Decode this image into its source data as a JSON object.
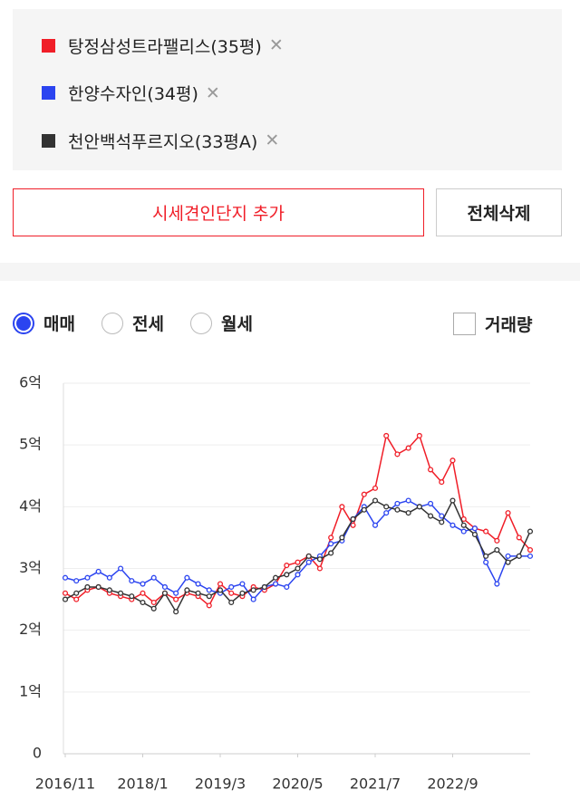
{
  "controls": {
    "add_button": "시세견인단지 추가",
    "delete_all_button": "전체삭제",
    "remove_icon": "✕",
    "radios": [
      "매매",
      "전세",
      "월세"
    ],
    "selected_radio": 0,
    "volume_checkbox": "거래량"
  },
  "chart_data": {
    "type": "line",
    "x": [
      "2016/11",
      "2017/1",
      "2017/3",
      "2017/5",
      "2017/7",
      "2017/9",
      "2017/11",
      "2018/1",
      "2018/3",
      "2018/5",
      "2018/7",
      "2018/9",
      "2018/11",
      "2019/1",
      "2019/3",
      "2019/5",
      "2019/7",
      "2019/9",
      "2019/11",
      "2020/1",
      "2020/3",
      "2020/5",
      "2020/7",
      "2020/9",
      "2020/11",
      "2021/1",
      "2021/3",
      "2021/5",
      "2021/7",
      "2021/9",
      "2021/11",
      "2022/1",
      "2022/3",
      "2022/5",
      "2022/7",
      "2022/9",
      "2022/11",
      "2023/1",
      "2023/3",
      "2023/5",
      "2023/7",
      "2023/9",
      "2023/11"
    ],
    "xticks": [
      "2016/11",
      "2018/1",
      "2019/3",
      "2020/5",
      "2021/7",
      "2022/9"
    ],
    "ylim": [
      0,
      6
    ],
    "yticks": [
      0,
      {
        "value": 1,
        "label": "1억"
      },
      {
        "value": 2,
        "label": "2억"
      },
      {
        "value": 3,
        "label": "3억"
      },
      {
        "value": 4,
        "label": "4억"
      },
      {
        "value": 5,
        "label": "5억"
      },
      {
        "value": 6,
        "label": "6억"
      }
    ],
    "grid": true,
    "series": [
      {
        "name": "탕정삼성트라팰리스(35평)",
        "color": "#f01e28",
        "values": [
          2.6,
          2.5,
          2.65,
          2.7,
          2.6,
          2.55,
          2.5,
          2.6,
          2.45,
          2.6,
          2.5,
          2.6,
          2.55,
          2.4,
          2.75,
          2.6,
          2.55,
          2.7,
          2.65,
          2.75,
          3.05,
          3.1,
          3.2,
          3.0,
          3.5,
          4.0,
          3.7,
          4.2,
          4.3,
          5.15,
          4.85,
          4.95,
          5.15,
          4.6,
          4.4,
          4.75,
          3.8,
          3.65,
          3.6,
          3.45,
          3.9,
          3.5,
          3.3
        ]
      },
      {
        "name": "한양수자인(34평)",
        "color": "#2b44f0",
        "values": [
          2.85,
          2.8,
          2.85,
          2.95,
          2.85,
          3.0,
          2.8,
          2.75,
          2.85,
          2.7,
          2.6,
          2.85,
          2.75,
          2.65,
          2.6,
          2.7,
          2.75,
          2.5,
          2.7,
          2.75,
          2.7,
          2.9,
          3.1,
          3.2,
          3.4,
          3.45,
          3.8,
          4.0,
          3.7,
          3.9,
          4.05,
          4.1,
          4.0,
          4.05,
          3.85,
          3.7,
          3.6,
          3.65,
          3.1,
          2.75,
          3.2,
          3.2,
          3.2
        ]
      },
      {
        "name": "천안백석푸르지오(33평A)",
        "color": "#333333",
        "values": [
          2.5,
          2.6,
          2.7,
          2.7,
          2.65,
          2.6,
          2.55,
          2.45,
          2.35,
          2.6,
          2.3,
          2.65,
          2.6,
          2.55,
          2.65,
          2.45,
          2.6,
          2.65,
          2.7,
          2.85,
          2.9,
          3.0,
          3.2,
          3.15,
          3.25,
          3.5,
          3.8,
          3.95,
          4.1,
          4.0,
          3.95,
          3.9,
          4.0,
          3.85,
          3.75,
          4.1,
          3.7,
          3.55,
          3.2,
          3.3,
          3.1,
          3.2,
          3.6
        ]
      }
    ]
  }
}
